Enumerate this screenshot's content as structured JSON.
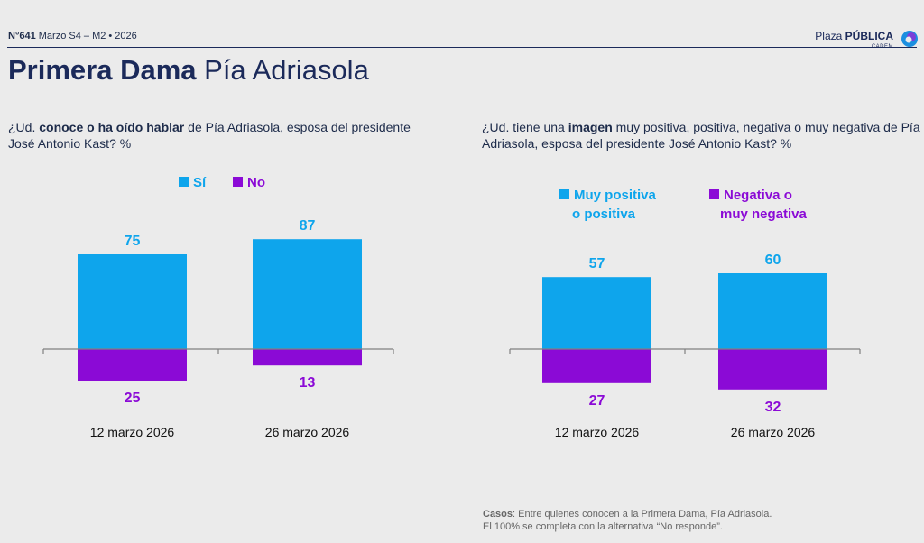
{
  "header": {
    "issue_num": "N°641",
    "issue_rest": "Marzo S4 – M2 • 2026",
    "brand_plaza": "Plaza",
    "brand_publica": "PÚBLICA",
    "brand_cadem": "CADEM"
  },
  "title": {
    "bold": "Primera Dama",
    "regular": "Pía Adriasola"
  },
  "left_question": {
    "pre": "¿Ud.",
    "bold": "conoce o ha oído hablar",
    "post": "de Pía Adriasola, esposa del presidente José Antonio Kast? %"
  },
  "right_question": {
    "pre": "¿Ud. tiene una",
    "bold": "imagen",
    "post": "muy positiva, positiva, negativa o muy negativa de Pía Adriasola, esposa del presidente José Antonio Kast? %"
  },
  "colors": {
    "positive": "#0ea5ec",
    "negative": "#8b0ad6",
    "axis": "#808080"
  },
  "chart_data": [
    {
      "type": "bar",
      "categories": [
        "12 marzo 2026",
        "26 marzo 2026"
      ],
      "series": [
        {
          "name": "Sí",
          "values": [
            75,
            87
          ]
        },
        {
          "name": "No",
          "values": [
            25,
            13
          ]
        }
      ],
      "legend_line1": [
        "Sí",
        "No"
      ],
      "legend_line2": [
        "",
        ""
      ]
    },
    {
      "type": "bar",
      "categories": [
        "12 marzo 2026",
        "26 marzo 2026"
      ],
      "series": [
        {
          "name": "Muy positiva o positiva",
          "values": [
            57,
            60
          ]
        },
        {
          "name": "Negativa o muy negativa",
          "values": [
            27,
            32
          ]
        }
      ],
      "legend_line1": [
        "Muy positiva",
        "Negativa o"
      ],
      "legend_line2": [
        "o positiva",
        "muy negativa"
      ]
    }
  ],
  "footnote": {
    "bold": "Casos",
    "line1": ": Entre quienes conocen a la Primera Dama, Pía Adriasola.",
    "line2": "El 100% se completa con la alternativa “No responde”."
  }
}
